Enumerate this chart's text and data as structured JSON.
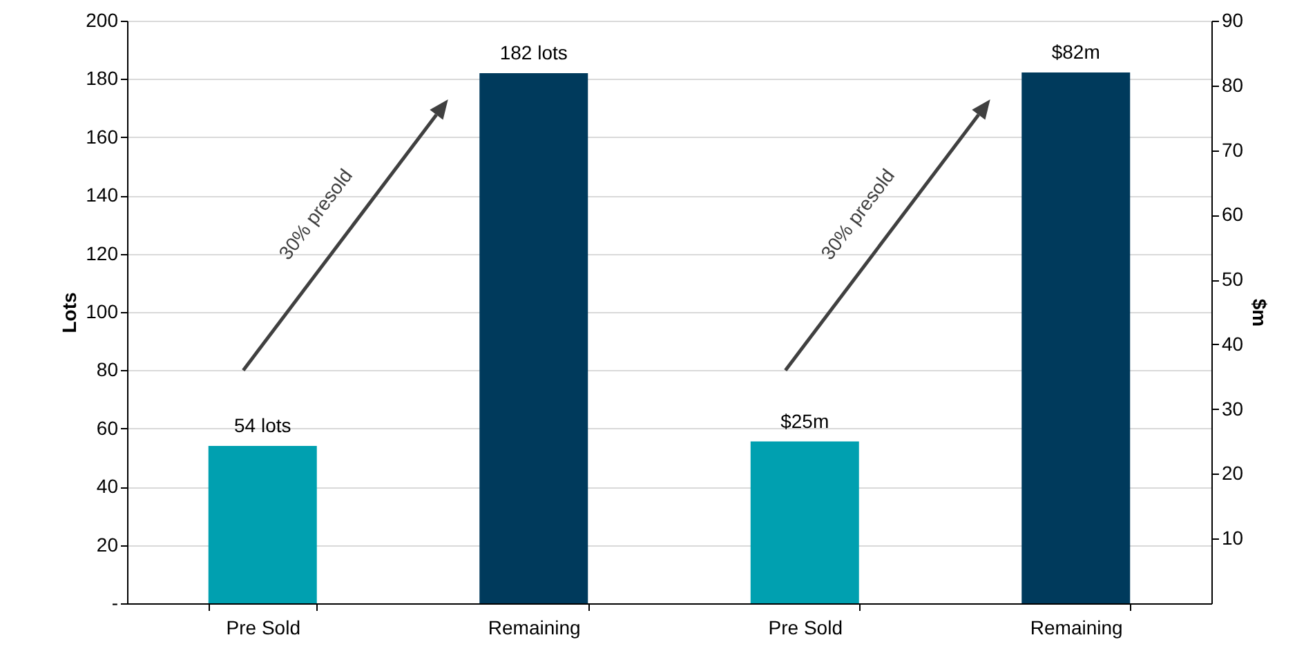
{
  "chart_data": {
    "type": "bar",
    "categories": [
      "Pre Sold",
      "Remaining",
      "Pre Sold",
      "Remaining"
    ],
    "ylabel": "Lots",
    "y2label": "$m",
    "ylim": [
      0,
      200
    ],
    "yticks": [
      {
        "value": 0,
        "label": "-"
      },
      20,
      40,
      60,
      80,
      100,
      120,
      140,
      160,
      180,
      200
    ],
    "y2lim": [
      0,
      90
    ],
    "y2ticks": [
      10,
      20,
      30,
      40,
      50,
      60,
      70,
      80,
      90
    ],
    "grid": "y",
    "annotations": [
      "30% presold",
      "30% presold"
    ],
    "series": [
      {
        "axis": "y",
        "colors": [
          "#00a0b0",
          "#003a5c",
          null,
          null
        ],
        "values": [
          54,
          182,
          null,
          null
        ],
        "value_labels": [
          "54 lots",
          "182 lots",
          null,
          null
        ]
      },
      {
        "axis": "y2",
        "colors": [
          null,
          null,
          "#00a0b0",
          "#003a5c"
        ],
        "values": [
          null,
          null,
          25,
          82
        ],
        "value_labels": [
          null,
          null,
          "$25m",
          "$82m"
        ]
      }
    ]
  }
}
